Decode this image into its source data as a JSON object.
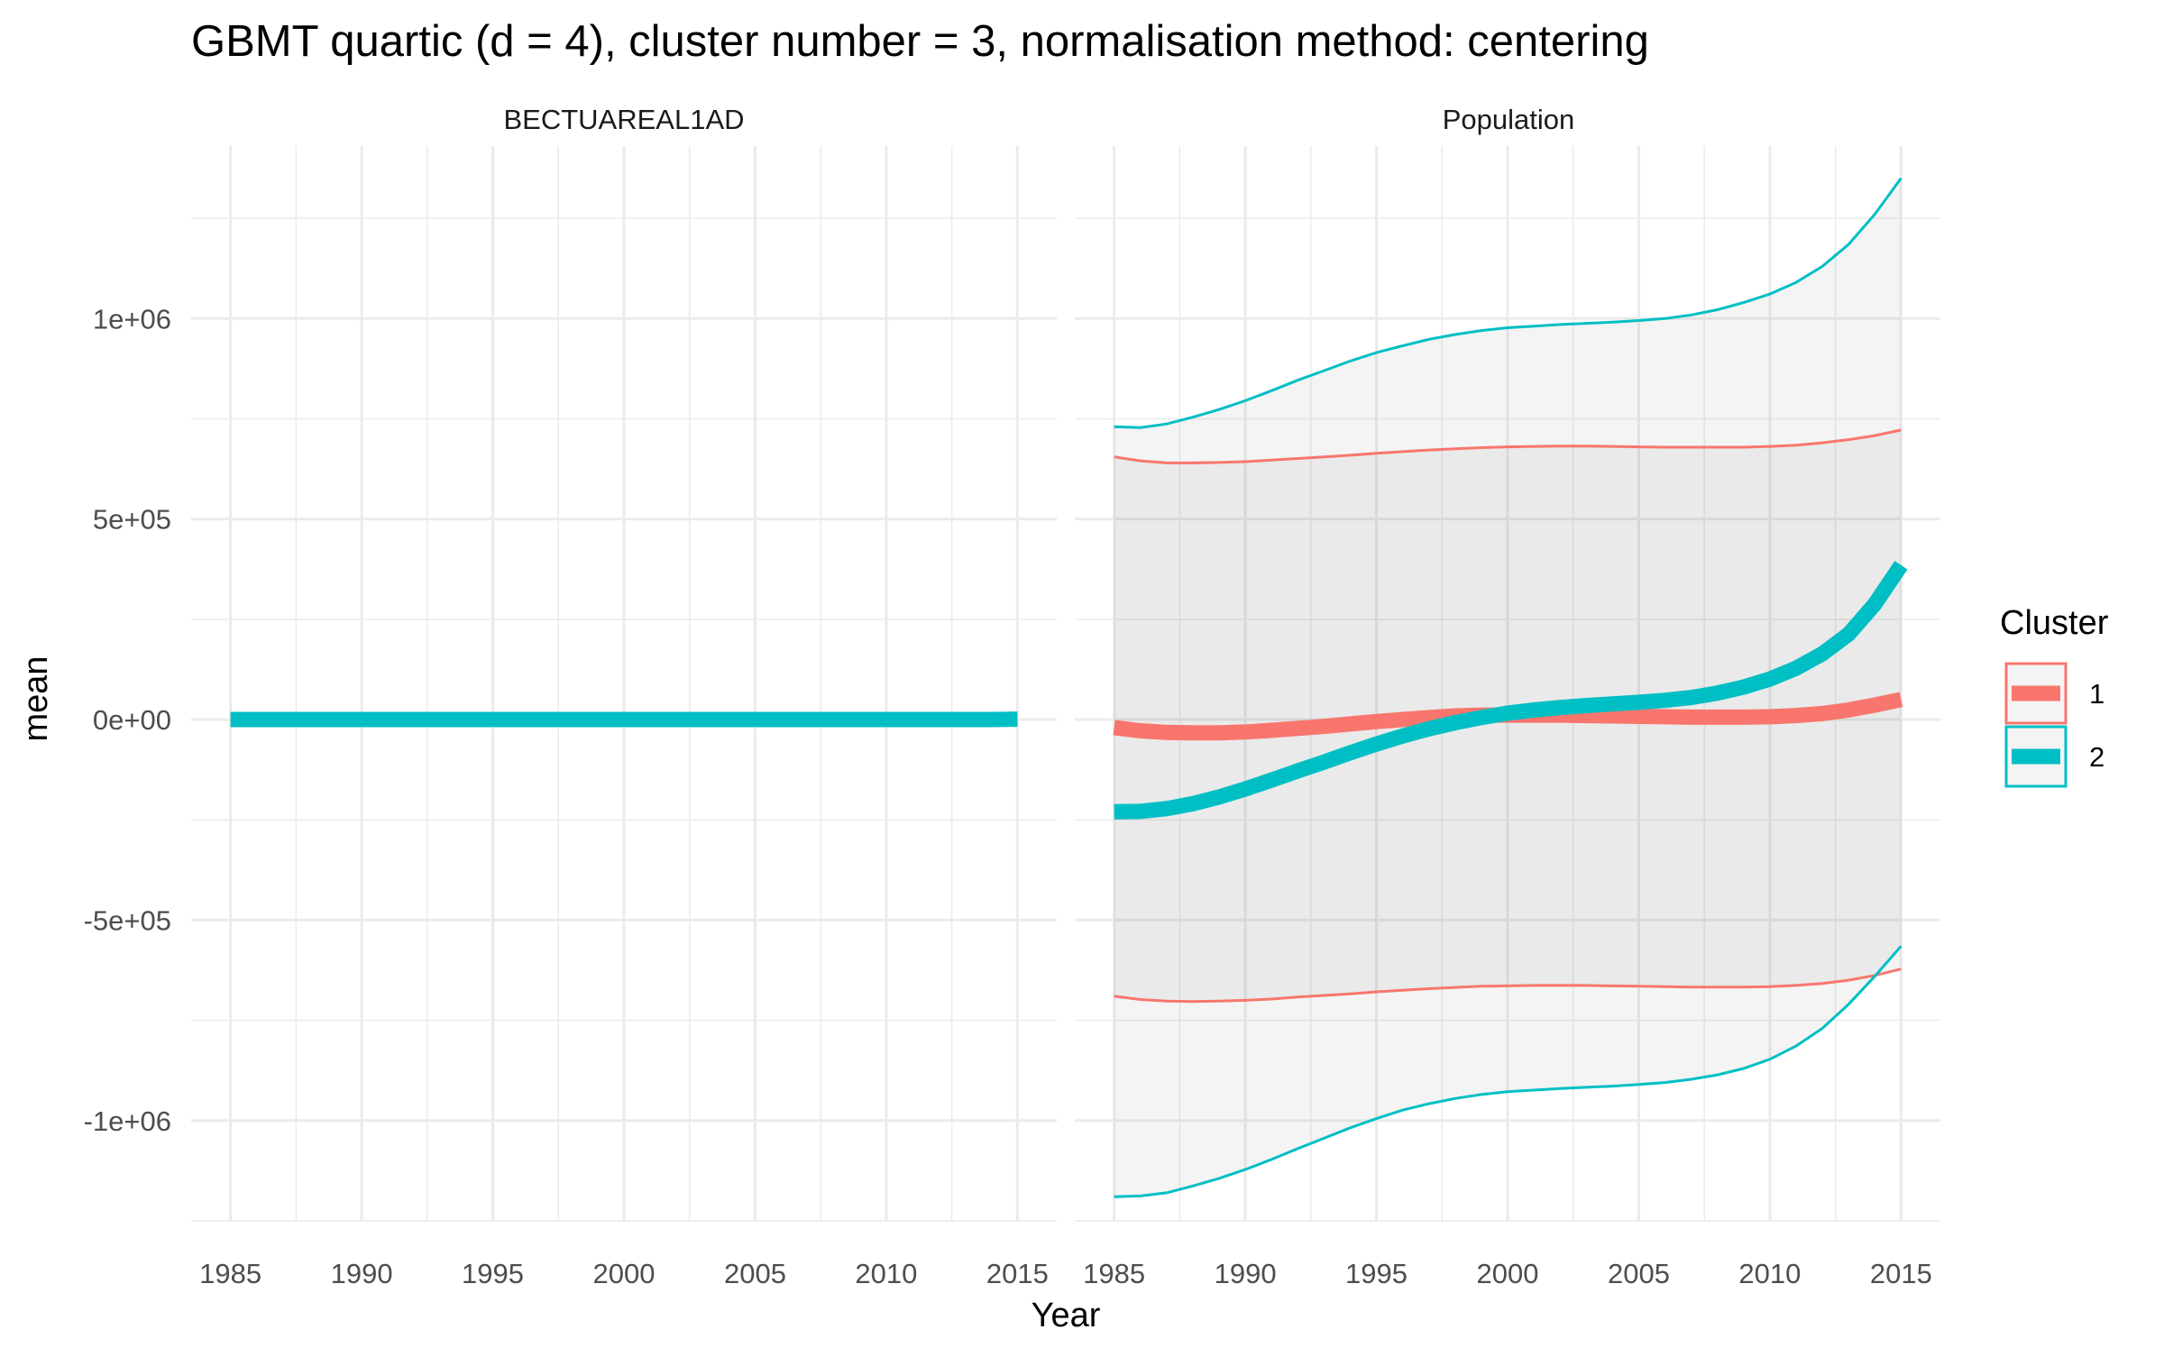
{
  "chart_data": {
    "type": "line",
    "title": "GBMT quartic (d = 4), cluster number = 3, normalisation method: centering",
    "xlabel": "Year",
    "ylabel": "mean",
    "xlim": [
      1983.5,
      2016.5
    ],
    "ylim": [
      -1250000,
      1430000
    ],
    "x_ticks": [
      1985,
      1990,
      1995,
      2000,
      2005,
      2010,
      2015
    ],
    "x_tick_labels": [
      "1985",
      "1990",
      "1995",
      "2000",
      "2005",
      "2010",
      "2015"
    ],
    "y_ticks": [
      1000000,
      500000,
      0,
      -500000,
      -1000000
    ],
    "y_tick_labels": [
      "1e+06",
      "5e+05",
      "0e+00",
      "-5e+05",
      "-1e+06"
    ],
    "grid": true,
    "legend": {
      "title": "Cluster",
      "position": "right",
      "entries": [
        {
          "label": "1",
          "color": "#F8766D"
        },
        {
          "label": "2",
          "color": "#00BFC4"
        }
      ]
    },
    "years": [
      1985,
      1986,
      1987,
      1988,
      1989,
      1990,
      1991,
      1992,
      1993,
      1994,
      1995,
      1996,
      1997,
      1998,
      1999,
      2000,
      2001,
      2002,
      2003,
      2004,
      2005,
      2006,
      2007,
      2008,
      2009,
      2010,
      2011,
      2012,
      2013,
      2014,
      2015
    ],
    "panels": [
      {
        "name": "BECTUAREAL1AD",
        "series": [
          {
            "cluster": "2",
            "color": "#00BFC4",
            "mean": [
              0,
              0,
              0,
              0,
              0,
              0,
              0,
              0,
              0,
              0,
              0,
              0,
              0,
              0,
              0,
              0,
              0,
              0,
              0,
              0,
              0,
              0,
              0,
              0,
              0,
              0,
              0,
              0,
              0,
              0,
              1000
            ],
            "lower": null,
            "upper": null
          }
        ]
      },
      {
        "name": "Population",
        "series": [
          {
            "cluster": "1",
            "color": "#F8766D",
            "mean": [
              -20000,
              -28000,
              -32000,
              -33000,
              -33000,
              -31000,
              -27000,
              -22000,
              -17000,
              -11000,
              -5000,
              0,
              5000,
              9000,
              11000,
              11000,
              11000,
              11000,
              10000,
              9000,
              8000,
              7000,
              6000,
              6000,
              6000,
              7000,
              10000,
              15000,
              24000,
              36000,
              50000
            ],
            "upper": [
              655000,
              645000,
              640000,
              640000,
              641000,
              643000,
              647000,
              651000,
              655000,
              659000,
              664000,
              668000,
              672000,
              675000,
              678000,
              680000,
              681000,
              682000,
              682000,
              681000,
              680000,
              679000,
              679000,
              679000,
              679000,
              681000,
              684000,
              690000,
              698000,
              708000,
              722000
            ],
            "lower": [
              -690000,
              -698000,
              -702000,
              -703000,
              -702000,
              -700000,
              -697000,
              -692000,
              -688000,
              -684000,
              -679000,
              -675000,
              -671000,
              -668000,
              -665000,
              -664000,
              -663000,
              -663000,
              -663000,
              -664000,
              -665000,
              -666000,
              -667000,
              -667000,
              -667000,
              -666000,
              -663000,
              -658000,
              -650000,
              -638000,
              -622000
            ]
          },
          {
            "cluster": "2",
            "color": "#00BFC4",
            "mean": [
              -230000,
              -229000,
              -222000,
              -210000,
              -193000,
              -173000,
              -151000,
              -128000,
              -106000,
              -83000,
              -61000,
              -41000,
              -23000,
              -8000,
              5000,
              16000,
              24000,
              30000,
              35000,
              39000,
              43000,
              48000,
              55000,
              66000,
              81000,
              101000,
              128000,
              164000,
              213000,
              288000,
              385000
            ],
            "upper": [
              730000,
              728000,
              737000,
              754000,
              773000,
              795000,
              820000,
              846000,
              870000,
              894000,
              915000,
              932000,
              948000,
              960000,
              970000,
              977000,
              981000,
              985000,
              988000,
              991000,
              995000,
              1000000,
              1009000,
              1022000,
              1040000,
              1061000,
              1090000,
              1130000,
              1185000,
              1260000,
              1350000
            ],
            "lower": [
              -1190000,
              -1188000,
              -1180000,
              -1163000,
              -1144000,
              -1122000,
              -1097000,
              -1070000,
              -1044000,
              -1018000,
              -995000,
              -974000,
              -958000,
              -945000,
              -935000,
              -928000,
              -924000,
              -920000,
              -917000,
              -914000,
              -910000,
              -905000,
              -897000,
              -886000,
              -870000,
              -847000,
              -814000,
              -770000,
              -710000,
              -640000,
              -565000
            ]
          }
        ]
      }
    ]
  }
}
